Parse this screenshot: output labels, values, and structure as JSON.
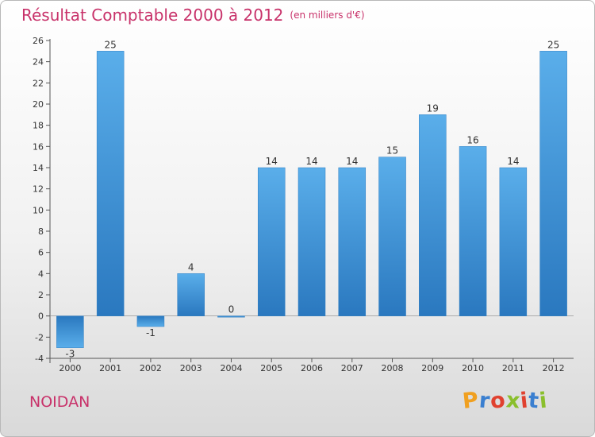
{
  "header": {
    "title": "Résultat Comptable 2000 à 2012",
    "unit": "(en milliers d'€)"
  },
  "footer": {
    "commune": "NOIDAN",
    "logo_letters": [
      "P",
      "r",
      "o",
      "x",
      "i",
      "t",
      "i"
    ],
    "logo_colors": [
      "#f0a020",
      "#3a7fd0",
      "#e0412f",
      "#8abf2c",
      "#e0412f",
      "#3a7fd0",
      "#8abf2c"
    ]
  },
  "chart_data": {
    "type": "bar",
    "title": "Résultat Comptable 2000 à 2012",
    "subtitle": "(en milliers d'€)",
    "xlabel": "",
    "ylabel": "",
    "categories": [
      "2000",
      "2001",
      "2002",
      "2003",
      "2004",
      "2005",
      "2006",
      "2007",
      "2008",
      "2009",
      "2010",
      "2011",
      "2012"
    ],
    "values": [
      -3,
      25,
      -1,
      4,
      0,
      14,
      14,
      14,
      15,
      19,
      16,
      14,
      25
    ],
    "value_labels": [
      "-3",
      "25",
      "-1",
      "4",
      "0",
      "14",
      "14",
      "14",
      "15",
      "19",
      "16",
      "14",
      "25"
    ],
    "ylim": [
      -4,
      26
    ],
    "yticks": [
      -4,
      -2,
      0,
      2,
      4,
      6,
      8,
      10,
      12,
      14,
      16,
      18,
      20,
      22,
      24,
      26
    ],
    "ytick_labels": [
      "-4",
      "-2",
      "0",
      "2",
      "4",
      "6",
      "8",
      "10",
      "12",
      "14",
      "16",
      "18",
      "20",
      "22",
      "24",
      "26"
    ],
    "bar_color": "#3d93d9",
    "grid": false
  }
}
